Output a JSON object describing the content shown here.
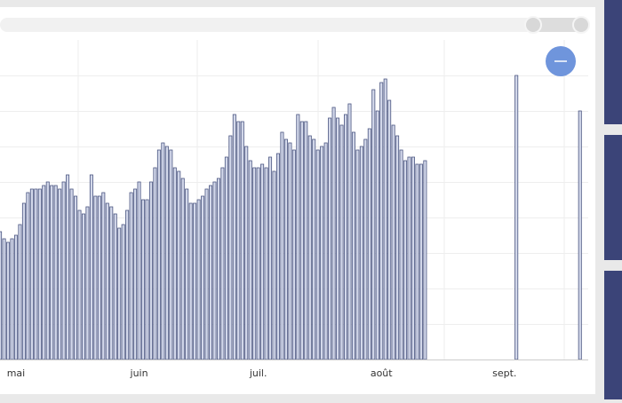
{
  "chart_data": {
    "type": "bar",
    "categories": [
      null,
      null,
      null,
      null,
      "mai",
      null,
      null,
      null,
      null,
      null,
      null,
      null,
      null,
      null,
      null,
      null,
      null,
      null,
      null,
      null,
      null,
      null,
      null,
      null,
      null,
      null,
      null,
      null,
      null,
      null,
      null,
      null,
      null,
      null,
      null,
      "juin",
      null,
      null,
      null,
      null,
      null,
      null,
      null,
      null,
      null,
      null,
      null,
      null,
      null,
      null,
      null,
      null,
      null,
      null,
      null,
      null,
      null,
      null,
      null,
      null,
      null,
      null,
      null,
      null,
      null,
      "juil.",
      null,
      null,
      null,
      null,
      null,
      null,
      null,
      null,
      null,
      null,
      null,
      null,
      null,
      null,
      null,
      null,
      null,
      null,
      null,
      null,
      null,
      null,
      null,
      null,
      null,
      null,
      null,
      null,
      null,
      null,
      "août",
      null,
      null,
      null,
      null,
      null,
      null,
      null,
      null,
      null,
      null,
      null,
      null,
      null,
      null,
      null,
      null,
      null,
      null,
      null,
      null,
      null,
      null,
      null,
      null,
      null,
      null,
      null,
      null,
      null,
      null,
      "sept.",
      null,
      null,
      null,
      null,
      null,
      null,
      null,
      null,
      null,
      null,
      null,
      null,
      null,
      null,
      null,
      null,
      null,
      null,
      null
    ],
    "values": [
      3.6,
      3.4,
      3.3,
      3.4,
      3.5,
      3.8,
      4.4,
      4.7,
      4.8,
      4.8,
      4.8,
      4.9,
      5.0,
      4.9,
      4.9,
      4.8,
      5.0,
      5.2,
      4.8,
      4.6,
      4.2,
      4.1,
      4.3,
      5.2,
      4.6,
      4.6,
      4.7,
      4.4,
      4.3,
      4.1,
      3.7,
      3.8,
      4.2,
      4.7,
      4.8,
      5.0,
      4.5,
      4.5,
      5.0,
      5.4,
      5.9,
      6.1,
      6.0,
      5.9,
      5.4,
      5.3,
      5.1,
      4.8,
      4.4,
      4.4,
      4.5,
      4.6,
      4.8,
      4.9,
      5.0,
      5.1,
      5.4,
      5.7,
      6.3,
      6.9,
      6.7,
      6.7,
      6.0,
      5.6,
      5.4,
      5.4,
      5.5,
      5.4,
      5.7,
      5.3,
      5.8,
      6.4,
      6.2,
      6.1,
      5.9,
      6.9,
      6.7,
      6.7,
      6.3,
      6.2,
      5.9,
      6.0,
      6.1,
      6.8,
      7.1,
      6.8,
      6.6,
      6.9,
      7.2,
      6.4,
      5.9,
      6.0,
      6.2,
      6.5,
      7.6,
      7.0,
      7.8,
      7.9,
      7.3,
      6.6,
      6.3,
      5.9,
      5.6,
      5.7,
      5.7,
      5.5,
      5.5,
      5.6,
      null,
      null,
      null,
      null,
      null,
      null,
      null,
      null,
      null,
      null,
      null,
      null,
      null,
      null,
      null,
      null,
      null,
      null,
      null,
      null,
      null,
      null,
      8.0,
      null,
      null,
      null,
      null,
      null,
      null,
      null,
      null,
      null,
      null,
      null,
      null,
      null,
      null,
      null,
      7.0
    ],
    "color": "#d3d8ea",
    "edge_color": "#4a5580",
    "ylim": [
      0,
      9
    ],
    "yticks": [
      1,
      2,
      3,
      4,
      5,
      6,
      7,
      8
    ],
    "grid": true
  }
}
